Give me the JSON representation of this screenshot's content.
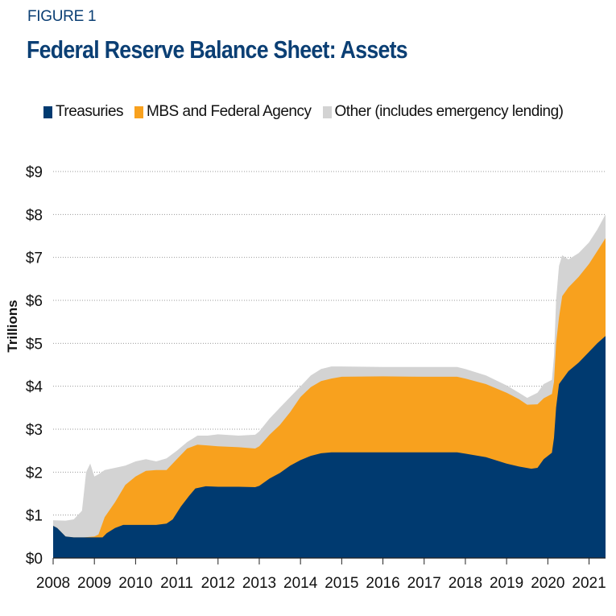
{
  "figure_label": "FIGURE 1",
  "chart_data": {
    "type": "area",
    "title": "Federal Reserve Balance Sheet: Assets",
    "ylabel": "Trillions",
    "xlabel": "",
    "ylim": [
      0,
      9
    ],
    "xlim": [
      2008,
      2021.4
    ],
    "y_ticks": [
      "$0",
      "$1",
      "$2",
      "$3",
      "$4",
      "$5",
      "$6",
      "$7",
      "$8",
      "$9"
    ],
    "x_ticks": [
      "2008",
      "2009",
      "2010",
      "2011",
      "2012",
      "2013",
      "2014",
      "2015",
      "2016",
      "2017",
      "2018",
      "2019",
      "2020",
      "2021"
    ],
    "stacked": true,
    "grid": "horizontal dotted",
    "legend_position": "top-left",
    "series": [
      {
        "name": "Treasuries",
        "color": "#003a70",
        "points": [
          [
            2008.0,
            0.75
          ],
          [
            2008.1,
            0.7
          ],
          [
            2008.3,
            0.5
          ],
          [
            2008.5,
            0.48
          ],
          [
            2008.75,
            0.48
          ],
          [
            2009.2,
            0.48
          ],
          [
            2009.3,
            0.58
          ],
          [
            2009.5,
            0.7
          ],
          [
            2009.7,
            0.77
          ],
          [
            2010.0,
            0.77
          ],
          [
            2010.5,
            0.77
          ],
          [
            2010.75,
            0.8
          ],
          [
            2010.9,
            0.9
          ],
          [
            2011.1,
            1.2
          ],
          [
            2011.3,
            1.45
          ],
          [
            2011.45,
            1.62
          ],
          [
            2011.7,
            1.67
          ],
          [
            2012.0,
            1.66
          ],
          [
            2012.5,
            1.66
          ],
          [
            2012.9,
            1.65
          ],
          [
            2013.0,
            1.68
          ],
          [
            2013.25,
            1.85
          ],
          [
            2013.5,
            1.98
          ],
          [
            2013.75,
            2.15
          ],
          [
            2014.0,
            2.28
          ],
          [
            2014.25,
            2.38
          ],
          [
            2014.5,
            2.44
          ],
          [
            2014.75,
            2.46
          ],
          [
            2015.0,
            2.46
          ],
          [
            2016.0,
            2.46
          ],
          [
            2017.0,
            2.46
          ],
          [
            2017.8,
            2.46
          ],
          [
            2018.0,
            2.43
          ],
          [
            2018.5,
            2.35
          ],
          [
            2019.0,
            2.2
          ],
          [
            2019.3,
            2.13
          ],
          [
            2019.6,
            2.08
          ],
          [
            2019.75,
            2.1
          ],
          [
            2019.9,
            2.3
          ],
          [
            2020.1,
            2.45
          ],
          [
            2020.15,
            2.8
          ],
          [
            2020.2,
            3.5
          ],
          [
            2020.27,
            4.05
          ],
          [
            2020.5,
            4.35
          ],
          [
            2020.75,
            4.55
          ],
          [
            2021.0,
            4.8
          ],
          [
            2021.2,
            5.0
          ],
          [
            2021.4,
            5.17
          ]
        ]
      },
      {
        "name": "MBS and Federal Agency",
        "color": "#f8a11e",
        "points": [
          [
            2008.0,
            0.75
          ],
          [
            2008.1,
            0.7
          ],
          [
            2008.3,
            0.5
          ],
          [
            2008.5,
            0.48
          ],
          [
            2008.75,
            0.48
          ],
          [
            2009.0,
            0.5
          ],
          [
            2009.1,
            0.55
          ],
          [
            2009.25,
            0.95
          ],
          [
            2009.5,
            1.3
          ],
          [
            2009.75,
            1.7
          ],
          [
            2010.0,
            1.9
          ],
          [
            2010.25,
            2.03
          ],
          [
            2010.5,
            2.05
          ],
          [
            2010.75,
            2.05
          ],
          [
            2011.0,
            2.3
          ],
          [
            2011.25,
            2.55
          ],
          [
            2011.5,
            2.64
          ],
          [
            2012.0,
            2.6
          ],
          [
            2012.5,
            2.58
          ],
          [
            2012.9,
            2.55
          ],
          [
            2013.0,
            2.6
          ],
          [
            2013.25,
            2.87
          ],
          [
            2013.5,
            3.1
          ],
          [
            2013.75,
            3.4
          ],
          [
            2014.0,
            3.75
          ],
          [
            2014.25,
            3.98
          ],
          [
            2014.5,
            4.12
          ],
          [
            2014.75,
            4.18
          ],
          [
            2015.0,
            4.22
          ],
          [
            2016.0,
            4.23
          ],
          [
            2017.0,
            4.22
          ],
          [
            2017.8,
            4.22
          ],
          [
            2018.0,
            4.18
          ],
          [
            2018.5,
            4.05
          ],
          [
            2019.0,
            3.85
          ],
          [
            2019.3,
            3.7
          ],
          [
            2019.5,
            3.57
          ],
          [
            2019.75,
            3.58
          ],
          [
            2019.9,
            3.72
          ],
          [
            2020.1,
            3.82
          ],
          [
            2020.15,
            4.1
          ],
          [
            2020.2,
            5.0
          ],
          [
            2020.27,
            5.6
          ],
          [
            2020.35,
            6.1
          ],
          [
            2020.5,
            6.3
          ],
          [
            2020.75,
            6.55
          ],
          [
            2021.0,
            6.85
          ],
          [
            2021.2,
            7.15
          ],
          [
            2021.4,
            7.45
          ]
        ]
      },
      {
        "name": "Other (includes emergency lending)",
        "color": "#d3d3d3",
        "points": [
          [
            2008.0,
            0.88
          ],
          [
            2008.3,
            0.87
          ],
          [
            2008.5,
            0.9
          ],
          [
            2008.7,
            1.1
          ],
          [
            2008.8,
            2.0
          ],
          [
            2008.9,
            2.2
          ],
          [
            2009.0,
            1.9
          ],
          [
            2009.1,
            1.95
          ],
          [
            2009.25,
            2.05
          ],
          [
            2009.5,
            2.1
          ],
          [
            2009.75,
            2.15
          ],
          [
            2010.0,
            2.25
          ],
          [
            2010.25,
            2.3
          ],
          [
            2010.5,
            2.25
          ],
          [
            2010.75,
            2.32
          ],
          [
            2011.0,
            2.5
          ],
          [
            2011.25,
            2.7
          ],
          [
            2011.5,
            2.85
          ],
          [
            2011.75,
            2.85
          ],
          [
            2012.0,
            2.88
          ],
          [
            2012.5,
            2.85
          ],
          [
            2012.9,
            2.87
          ],
          [
            2013.0,
            2.95
          ],
          [
            2013.25,
            3.25
          ],
          [
            2013.5,
            3.5
          ],
          [
            2013.75,
            3.75
          ],
          [
            2014.0,
            4.0
          ],
          [
            2014.25,
            4.25
          ],
          [
            2014.5,
            4.4
          ],
          [
            2014.75,
            4.46
          ],
          [
            2015.0,
            4.46
          ],
          [
            2016.0,
            4.45
          ],
          [
            2017.0,
            4.45
          ],
          [
            2017.8,
            4.45
          ],
          [
            2018.0,
            4.4
          ],
          [
            2018.5,
            4.25
          ],
          [
            2019.0,
            4.02
          ],
          [
            2019.3,
            3.85
          ],
          [
            2019.5,
            3.73
          ],
          [
            2019.75,
            3.85
          ],
          [
            2019.9,
            4.05
          ],
          [
            2020.1,
            4.15
          ],
          [
            2020.15,
            4.7
          ],
          [
            2020.2,
            6.0
          ],
          [
            2020.27,
            6.8
          ],
          [
            2020.35,
            7.05
          ],
          [
            2020.5,
            6.95
          ],
          [
            2020.75,
            7.1
          ],
          [
            2021.0,
            7.35
          ],
          [
            2021.2,
            7.65
          ],
          [
            2021.4,
            8.0
          ]
        ]
      }
    ]
  }
}
